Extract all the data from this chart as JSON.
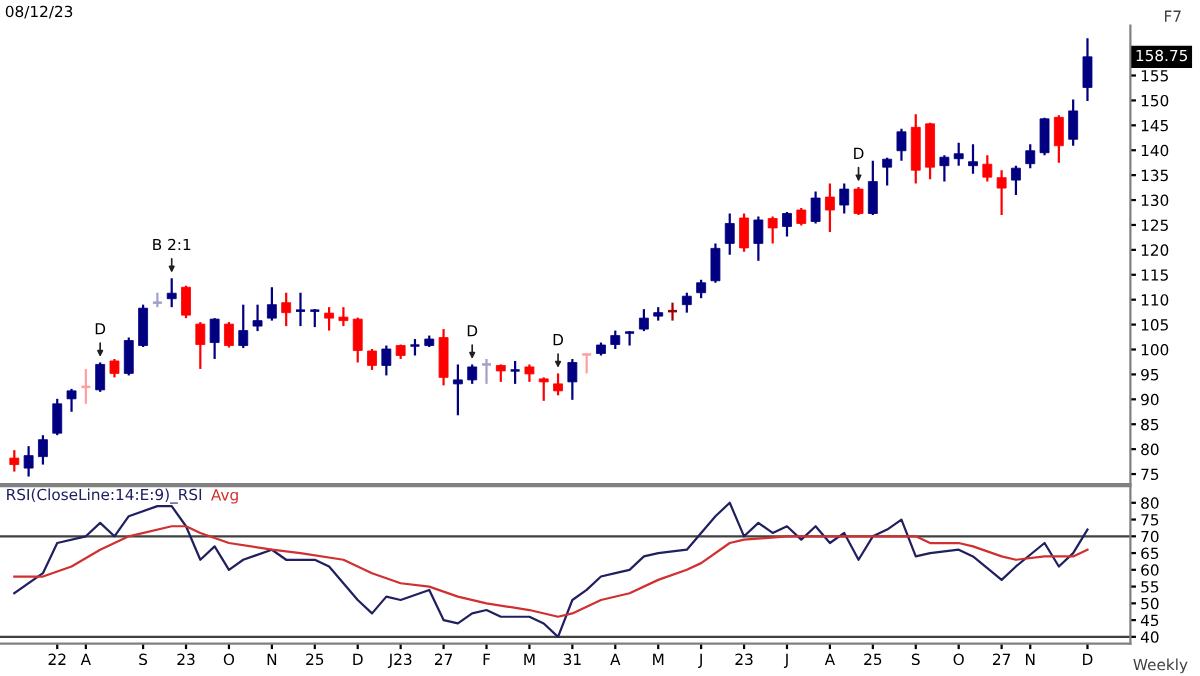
{
  "chart_data": [
    {
      "type": "candlestick",
      "title": "08/12/23",
      "x": [
        "2022-07-01",
        "2022-07-08",
        "2022-07-15",
        "2022-07-22",
        "2022-07-29",
        "2022-08-05",
        "2022-08-12",
        "2022-08-19",
        "2022-08-26",
        "2022-09-02",
        "2022-09-09",
        "2022-09-16",
        "2022-09-23",
        "2022-09-30",
        "2022-10-07",
        "2022-10-14",
        "2022-10-21",
        "2022-10-28",
        "2022-11-04",
        "2022-11-11",
        "2022-11-18",
        "2022-11-25",
        "2022-12-02",
        "2022-12-09",
        "2022-12-16",
        "2022-12-23",
        "2022-12-30",
        "2023-01-06",
        "2023-01-13",
        "2023-01-20",
        "2023-01-27",
        "2023-02-03",
        "2023-02-10",
        "2023-02-17",
        "2023-02-24",
        "2023-03-03",
        "2023-03-10",
        "2023-03-17",
        "2023-03-24",
        "2023-03-31",
        "2023-04-07",
        "2023-04-14",
        "2023-04-21",
        "2023-04-28",
        "2023-05-05",
        "2023-05-12",
        "2023-05-19",
        "2023-05-26",
        "2023-06-02",
        "2023-06-09",
        "2023-06-16",
        "2023-06-23",
        "2023-06-30",
        "2023-07-07",
        "2023-07-14",
        "2023-07-21",
        "2023-07-28",
        "2023-08-04",
        "2023-08-11",
        "2023-08-18",
        "2023-08-25",
        "2023-09-01",
        "2023-09-08",
        "2023-09-15",
        "2023-09-22",
        "2023-09-29",
        "2023-10-06",
        "2023-10-13",
        "2023-10-20",
        "2023-10-27",
        "2023-11-03",
        "2023-11-10",
        "2023-11-17",
        "2023-11-24",
        "2023-12-01",
        "2023-12-08"
      ],
      "ohlc": [
        [
          78.2,
          79.8,
          75.5,
          76.9
        ],
        [
          76.2,
          80.6,
          74.5,
          78.7
        ],
        [
          78.5,
          82.8,
          76.9,
          81.9
        ],
        [
          83.2,
          90.1,
          82.8,
          89.1
        ],
        [
          90.1,
          92.1,
          87.5,
          91.7
        ],
        [
          92.5,
          96.1,
          89.1,
          92.5
        ],
        [
          91.9,
          97.4,
          91.5,
          97.0
        ],
        [
          97.7,
          98.1,
          94.4,
          95.2
        ],
        [
          95.2,
          102.4,
          94.8,
          101.8
        ],
        [
          100.8,
          109.0,
          100.5,
          108.3
        ],
        [
          109.4,
          111.4,
          108.5,
          109.4
        ],
        [
          110.2,
          114.3,
          108.5,
          111.3
        ],
        [
          112.5,
          112.8,
          106.3,
          106.9
        ],
        [
          105.1,
          105.5,
          96.1,
          101.0
        ],
        [
          101.4,
          106.3,
          98.1,
          106.1
        ],
        [
          105.1,
          105.5,
          100.4,
          100.8
        ],
        [
          100.8,
          109.0,
          100.3,
          103.8
        ],
        [
          104.7,
          109.0,
          103.7,
          105.8
        ],
        [
          106.3,
          112.5,
          105.8,
          109.0
        ],
        [
          109.4,
          111.4,
          104.7,
          107.4
        ],
        [
          107.8,
          111.4,
          104.7,
          107.8
        ],
        [
          107.8,
          108.1,
          104.5,
          107.8
        ],
        [
          107.3,
          108.5,
          103.8,
          106.3
        ],
        [
          106.5,
          108.5,
          104.7,
          105.8
        ],
        [
          106.1,
          106.4,
          97.4,
          99.8
        ],
        [
          99.7,
          100.1,
          95.9,
          96.8
        ],
        [
          96.8,
          100.8,
          94.8,
          100.1
        ],
        [
          100.8,
          101.0,
          98.1,
          98.8
        ],
        [
          100.8,
          102.1,
          98.8,
          100.8
        ],
        [
          100.8,
          102.8,
          100.5,
          102.1
        ],
        [
          102.4,
          104.1,
          92.8,
          94.4
        ],
        [
          93.1,
          97.0,
          86.8,
          93.9
        ],
        [
          93.9,
          97.0,
          93.1,
          96.5
        ],
        [
          97.0,
          98.1,
          93.1,
          97.0
        ],
        [
          96.8,
          97.0,
          93.5,
          95.7
        ],
        [
          95.8,
          97.7,
          93.1,
          95.8
        ],
        [
          96.5,
          97.0,
          93.5,
          95.1
        ],
        [
          94.1,
          94.4,
          89.7,
          93.5
        ],
        [
          93.1,
          95.2,
          90.8,
          91.7
        ],
        [
          93.5,
          98.1,
          89.9,
          97.4
        ],
        [
          99.0,
          99.2,
          95.2,
          99.0
        ],
        [
          99.2,
          101.4,
          98.8,
          100.9
        ],
        [
          101.0,
          103.8,
          100.1,
          102.8
        ],
        [
          103.4,
          103.7,
          100.8,
          103.4
        ],
        [
          104.1,
          108.1,
          103.7,
          106.3
        ],
        [
          106.7,
          108.5,
          105.8,
          107.4
        ],
        [
          107.7,
          109.4,
          105.8,
          107.7
        ],
        [
          109.0,
          111.4,
          107.4,
          110.7
        ],
        [
          111.4,
          114.0,
          110.3,
          113.4
        ],
        [
          113.8,
          121.3,
          113.4,
          120.3
        ],
        [
          121.3,
          127.3,
          119.0,
          125.3
        ],
        [
          126.4,
          127.3,
          119.6,
          120.4
        ],
        [
          121.3,
          126.7,
          117.8,
          126.0
        ],
        [
          126.3,
          126.7,
          121.3,
          124.4
        ],
        [
          124.7,
          127.6,
          122.7,
          127.3
        ],
        [
          128.0,
          128.4,
          124.9,
          125.3
        ],
        [
          125.7,
          131.7,
          125.3,
          130.4
        ],
        [
          130.6,
          133.3,
          123.6,
          128.0
        ],
        [
          129.0,
          133.3,
          127.3,
          132.2
        ],
        [
          132.2,
          132.6,
          127.0,
          127.3
        ],
        [
          127.3,
          137.9,
          127.0,
          133.7
        ],
        [
          136.6,
          138.5,
          132.9,
          138.2
        ],
        [
          139.9,
          144.3,
          137.9,
          143.7
        ],
        [
          144.6,
          147.2,
          133.3,
          136.0
        ],
        [
          145.3,
          145.5,
          134.2,
          136.6
        ],
        [
          136.9,
          139.0,
          133.7,
          138.6
        ],
        [
          138.3,
          141.5,
          136.9,
          139.3
        ],
        [
          136.9,
          141.2,
          135.3,
          137.7
        ],
        [
          137.2,
          139.0,
          133.7,
          134.6
        ],
        [
          134.5,
          136.0,
          127.0,
          132.4
        ],
        [
          134.0,
          136.9,
          131.0,
          136.4
        ],
        [
          137.3,
          141.2,
          136.4,
          139.9
        ],
        [
          139.5,
          146.5,
          139.0,
          146.3
        ],
        [
          146.6,
          147.0,
          137.5,
          140.9
        ],
        [
          142.2,
          150.2,
          140.9,
          147.9
        ],
        [
          152.6,
          162.5,
          149.9,
          158.75
        ]
      ],
      "colors": [
        "#ff0000",
        "#000080",
        "#000080",
        "#000080",
        "#000080",
        "#ffa0a0",
        "#000080",
        "#ff0000",
        "#000080",
        "#000080",
        "#a0a0c8",
        "#000080",
        "#ff0000",
        "#ff0000",
        "#000080",
        "#ff0000",
        "#000080",
        "#000080",
        "#000080",
        "#ff0000",
        "#000080",
        "#000080",
        "#ff0000",
        "#ff0000",
        "#ff0000",
        "#ff0000",
        "#000080",
        "#ff0000",
        "#000080",
        "#000080",
        "#ff0000",
        "#000080",
        "#000080",
        "#a0a0c8",
        "#ff0000",
        "#000080",
        "#ff0000",
        "#ff0000",
        "#ff0000",
        "#000080",
        "#ffa0a0",
        "#000080",
        "#000080",
        "#000080",
        "#000080",
        "#000080",
        "#a00000",
        "#000080",
        "#000080",
        "#000080",
        "#000080",
        "#ff0000",
        "#000080",
        "#ff0000",
        "#000080",
        "#ff0000",
        "#000080",
        "#ff0000",
        "#000080",
        "#ff0000",
        "#000080",
        "#000080",
        "#000080",
        "#ff0000",
        "#ff0000",
        "#000080",
        "#000080",
        "#000080",
        "#ff0000",
        "#ff0000",
        "#000080",
        "#000080",
        "#000080",
        "#ff0000",
        "#000080",
        "#000080"
      ],
      "xlim": [
        "2022-06-24",
        "2023-12-29"
      ],
      "ylim": [
        73,
        165
      ],
      "yticks": [
        75,
        80,
        85,
        90,
        95,
        100,
        105,
        110,
        115,
        120,
        125,
        130,
        135,
        140,
        145,
        150,
        155
      ],
      "tick_labels": "y",
      "annotations": [
        {
          "text": "D",
          "x": "2022-08-12",
          "y": 97.4
        },
        {
          "text": "B 2:1",
          "x": "2022-09-16",
          "y": 114.3
        },
        {
          "text": "D",
          "x": "2023-02-10",
          "y": 97.0
        },
        {
          "text": "D",
          "x": "2023-03-24",
          "y": 95.2
        },
        {
          "text": "D",
          "x": "2023-08-18",
          "y": 132.6
        },
        {
          "text": "158.75",
          "y": 158.75
        },
        "F7"
      ]
    },
    {
      "type": "line",
      "series": [
        {
          "name": "RSI(CloseLine:14:E:9)_RSI",
          "color": "#202060",
          "x": [
            "2022-07-01",
            "2022-07-15",
            "2022-07-22",
            "2022-08-05",
            "2022-08-12",
            "2022-08-19",
            "2022-08-26",
            "2022-09-09",
            "2022-09-16",
            "2022-09-23",
            "2022-09-30",
            "2022-10-07",
            "2022-10-14",
            "2022-10-21",
            "2022-11-04",
            "2022-11-11",
            "2022-11-25",
            "2022-12-02",
            "2022-12-16",
            "2022-12-23",
            "2022-12-30",
            "2023-01-06",
            "2023-01-20",
            "2023-01-27",
            "2023-02-03",
            "2023-02-10",
            "2023-02-17",
            "2023-02-24",
            "2023-03-10",
            "2023-03-17",
            "2023-03-24",
            "2023-03-31",
            "2023-04-07",
            "2023-04-14",
            "2023-04-21",
            "2023-04-28",
            "2023-05-05",
            "2023-05-12",
            "2023-05-26",
            "2023-06-02",
            "2023-06-09",
            "2023-06-16",
            "2023-06-23",
            "2023-06-30",
            "2023-07-07",
            "2023-07-14",
            "2023-07-21",
            "2023-07-28",
            "2023-08-04",
            "2023-08-11",
            "2023-08-18",
            "2023-08-25",
            "2023-09-01",
            "2023-09-08",
            "2023-09-15",
            "2023-09-22",
            "2023-10-06",
            "2023-10-13",
            "2023-10-27",
            "2023-11-03",
            "2023-11-17",
            "2023-11-24",
            "2023-12-01",
            "2023-12-08"
          ],
          "values": [
            53,
            59,
            68,
            70,
            74,
            70,
            76,
            79,
            79,
            73,
            63,
            67,
            60,
            63,
            66,
            63,
            63,
            61,
            51,
            47,
            52,
            51,
            54,
            45,
            44,
            47,
            48,
            46,
            46,
            44,
            40,
            51,
            54,
            58,
            59,
            60,
            64,
            65,
            66,
            71,
            76,
            80,
            70,
            74,
            71,
            73,
            69,
            73,
            68,
            71,
            63,
            70,
            72,
            75,
            64,
            65,
            66,
            64,
            57,
            61,
            68,
            61,
            65,
            72
          ]
        },
        {
          "name": "Avg",
          "color": "#d03030",
          "x": [
            "2022-07-01",
            "2022-07-15",
            "2022-07-29",
            "2022-08-12",
            "2022-08-26",
            "2022-09-16",
            "2022-09-23",
            "2022-09-30",
            "2022-10-14",
            "2022-11-04",
            "2022-11-18",
            "2022-12-09",
            "2022-12-23",
            "2023-01-06",
            "2023-01-20",
            "2023-02-03",
            "2023-02-17",
            "2023-03-10",
            "2023-03-24",
            "2023-03-31",
            "2023-04-14",
            "2023-04-28",
            "2023-05-12",
            "2023-05-26",
            "2023-06-02",
            "2023-06-16",
            "2023-06-23",
            "2023-07-14",
            "2023-07-28",
            "2023-08-11",
            "2023-08-25",
            "2023-09-15",
            "2023-09-22",
            "2023-10-06",
            "2023-10-13",
            "2023-10-27",
            "2023-11-03",
            "2023-11-17",
            "2023-12-01",
            "2023-12-08"
          ],
          "values": [
            58,
            58,
            61,
            66,
            70,
            73,
            73,
            71,
            68,
            66,
            65,
            63,
            59,
            56,
            55,
            52,
            50,
            48,
            46,
            47,
            51,
            53,
            57,
            60,
            62,
            68,
            69,
            70,
            70,
            70,
            70,
            70,
            68,
            68,
            67,
            64,
            63,
            64,
            64,
            66
          ]
        }
      ],
      "xlim": [
        "2022-06-24",
        "2023-12-29"
      ],
      "ylim": [
        38,
        85
      ],
      "yticks": [
        40,
        45,
        50,
        55,
        60,
        65,
        70,
        75,
        80
      ],
      "xticks": [
        {
          "value": "2022-07-22",
          "label": "22"
        },
        {
          "value": "2022-08-05",
          "label": "A"
        },
        {
          "value": "2022-09-02",
          "label": "S"
        },
        {
          "value": "2022-09-23",
          "label": "23"
        },
        {
          "value": "2022-10-14",
          "label": "O"
        },
        {
          "value": "2022-11-04",
          "label": "N"
        },
        {
          "value": "2022-11-25",
          "label": "25"
        },
        {
          "value": "2022-12-16",
          "label": "D"
        },
        {
          "value": "2023-01-06",
          "label": "J23"
        },
        {
          "value": "2023-01-27",
          "label": "27"
        },
        {
          "value": "2023-02-17",
          "label": "F"
        },
        {
          "value": "2023-03-10",
          "label": "M"
        },
        {
          "value": "2023-03-31",
          "label": "31"
        },
        {
          "value": "2023-04-21",
          "label": "A"
        },
        {
          "value": "2023-05-12",
          "label": "M"
        },
        {
          "value": "2023-06-02",
          "label": "J"
        },
        {
          "value": "2023-06-23",
          "label": "23"
        },
        {
          "value": "2023-07-14",
          "label": "J"
        },
        {
          "value": "2023-08-04",
          "label": "A"
        },
        {
          "value": "2023-08-25",
          "label": "25"
        },
        {
          "value": "2023-09-15",
          "label": "S"
        },
        {
          "value": "2023-10-06",
          "label": "O"
        },
        {
          "value": "2023-10-27",
          "label": "27"
        },
        {
          "value": "2023-11-10",
          "label": "N"
        },
        {
          "value": "2023-12-08",
          "label": "D"
        }
      ],
      "ref_lines": [
        {
          "axis": "y",
          "value": 70,
          "color": "#404040"
        },
        {
          "axis": "y",
          "value": 40,
          "color": "#404040"
        }
      ],
      "annotations": [
        "Weekly"
      ]
    }
  ]
}
